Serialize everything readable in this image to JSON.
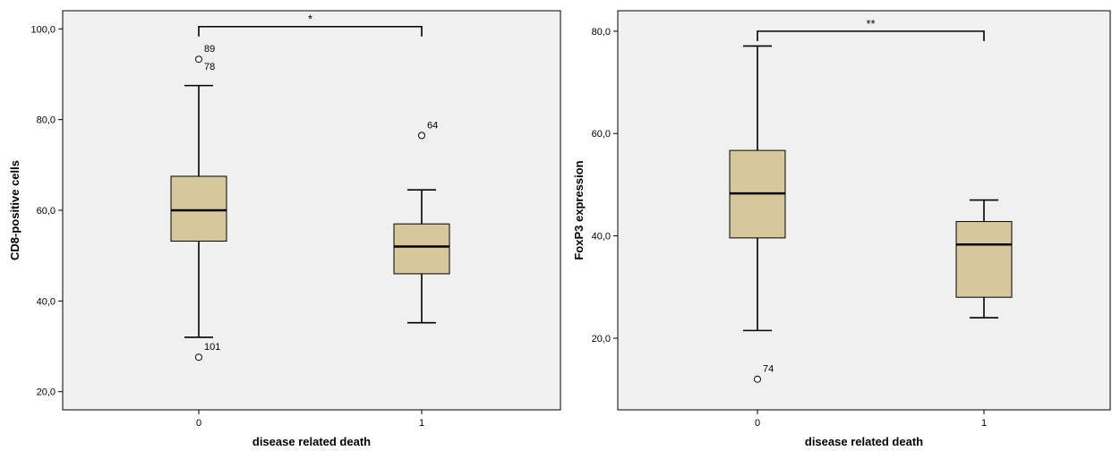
{
  "chart_data": [
    {
      "type": "boxplot",
      "xlabel": "disease related death",
      "ylabel": "CD8-positive cells",
      "ylim": [
        16.0,
        104.0
      ],
      "yticks": [
        20,
        40,
        60,
        80,
        100
      ],
      "ytick_labels": [
        "20,0",
        "40,0",
        "60,0",
        "80,0",
        "100,0"
      ],
      "categories": [
        "0",
        "1"
      ],
      "boxes": [
        {
          "category": "0",
          "whisker_low": 32.0,
          "q1": 53.2,
          "median": 60.0,
          "q3": 67.5,
          "whisker_high": 87.5,
          "outliers": [
            {
              "value": 93.3,
              "label": "89"
            },
            {
              "value": 93.3,
              "label": "78"
            },
            {
              "value": 27.6,
              "label": "101"
            }
          ]
        },
        {
          "category": "1",
          "whisker_low": 35.2,
          "q1": 46.0,
          "median": 52.0,
          "q3": 57.0,
          "whisker_high": 64.5,
          "outliers": [
            {
              "value": 76.5,
              "label": "64"
            }
          ]
        }
      ],
      "significance": {
        "from": "0",
        "to": "1",
        "label": "*",
        "level": 100.5
      },
      "box_color": "#d6c89a",
      "background_color": "#f0f0f0"
    },
    {
      "type": "boxplot",
      "xlabel": "disease related death",
      "ylabel": "FoxP3 expression",
      "ylim": [
        6.0,
        84.0
      ],
      "yticks": [
        20,
        40,
        60,
        80
      ],
      "ytick_labels": [
        "20,0",
        "40,0",
        "60,0",
        "80,0"
      ],
      "categories": [
        "0",
        "1"
      ],
      "boxes": [
        {
          "category": "0",
          "whisker_low": 21.5,
          "q1": 39.6,
          "median": 48.3,
          "q3": 56.7,
          "whisker_high": 77.1,
          "outliers": [
            {
              "value": 12.0,
              "label": "74"
            }
          ]
        },
        {
          "category": "1",
          "whisker_low": 24.0,
          "q1": 28.0,
          "median": 38.3,
          "q3": 42.8,
          "whisker_high": 47.0,
          "outliers": []
        }
      ],
      "significance": {
        "from": "0",
        "to": "1",
        "label": "**",
        "level": 80.0
      },
      "box_color": "#d6c89a",
      "background_color": "#f0f0f0"
    }
  ]
}
